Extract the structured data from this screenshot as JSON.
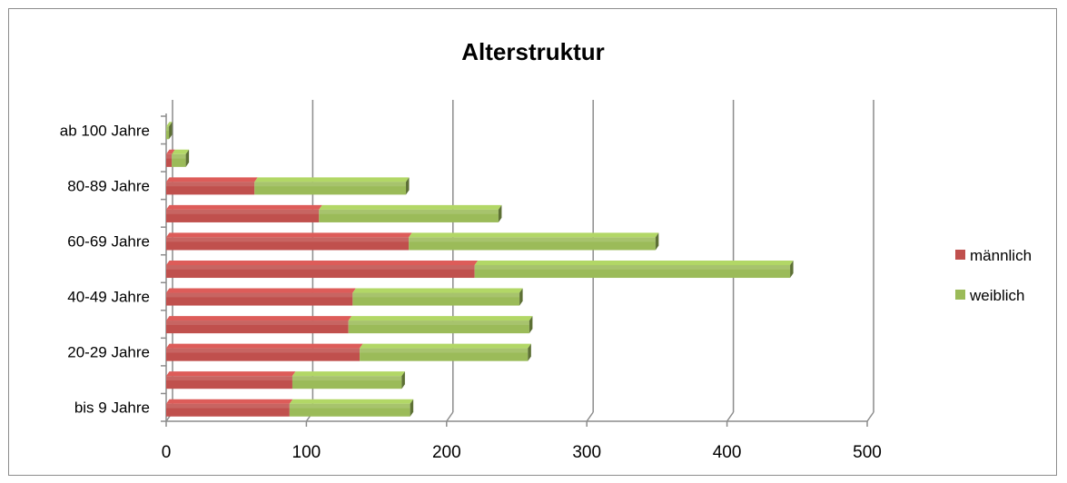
{
  "chart_data": {
    "type": "bar",
    "orientation": "horizontal",
    "stacked": true,
    "style": "3d",
    "title": "Alterstruktur",
    "categories": [
      "bis 9 Jahre",
      "",
      "20-29 Jahre",
      "",
      "40-49 Jahre",
      "",
      "60-69 Jahre",
      "",
      "80-89 Jahre",
      "",
      "ab 100 Jahre"
    ],
    "series": [
      {
        "name": "männlich",
        "color": "#c0504d",
        "values": [
          88,
          90,
          138,
          130,
          133,
          220,
          173,
          109,
          63,
          4,
          0
        ]
      },
      {
        "name": "weiblich",
        "color": "#9bbb59",
        "values": [
          86,
          78,
          120,
          129,
          119,
          225,
          176,
          128,
          108,
          10,
          2
        ]
      }
    ],
    "xlim": [
      0,
      500
    ],
    "xticks": [
      0,
      100,
      200,
      300,
      400,
      500
    ],
    "grid": true,
    "legend": "right"
  }
}
